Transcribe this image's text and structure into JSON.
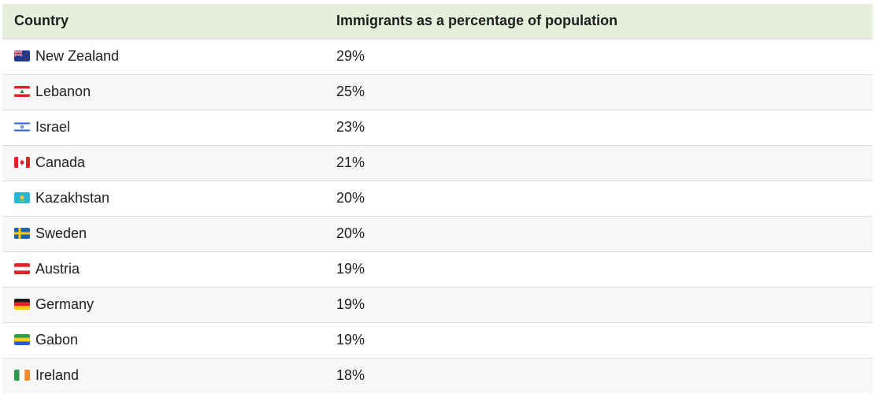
{
  "chart_data": {
    "type": "table",
    "columns": [
      "Country",
      "Immigrants as a percentage of population"
    ],
    "rows": [
      {
        "country": "New Zealand",
        "value": "29%",
        "flag_icon": "new-zealand-flag-icon"
      },
      {
        "country": "Lebanon",
        "value": "25%",
        "flag_icon": "lebanon-flag-icon"
      },
      {
        "country": "Israel",
        "value": "23%",
        "flag_icon": "israel-flag-icon"
      },
      {
        "country": "Canada",
        "value": "21%",
        "flag_icon": "canada-flag-icon"
      },
      {
        "country": "Kazakhstan",
        "value": "20%",
        "flag_icon": "kazakhstan-flag-icon"
      },
      {
        "country": "Sweden",
        "value": "20%",
        "flag_icon": "sweden-flag-icon"
      },
      {
        "country": "Austria",
        "value": "19%",
        "flag_icon": "austria-flag-icon"
      },
      {
        "country": "Germany",
        "value": "19%",
        "flag_icon": "germany-flag-icon"
      },
      {
        "country": "Gabon",
        "value": "19%",
        "flag_icon": "gabon-flag-icon"
      },
      {
        "country": "Ireland",
        "value": "18%",
        "flag_icon": "ireland-flag-icon"
      }
    ],
    "colors": {
      "header_background": "#e6efdc",
      "row_alt_background": "#f7f7f7",
      "row_divider": "#dcdcdc"
    }
  }
}
